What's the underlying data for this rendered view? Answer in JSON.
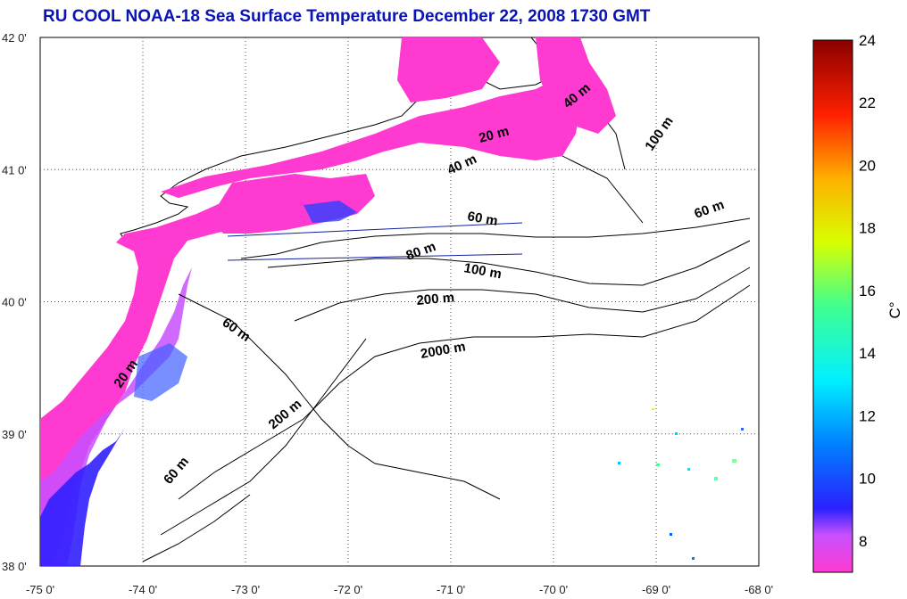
{
  "title": "RU COOL  NOAA-18 Sea Surface Temperature December 22, 2008 1730 GMT",
  "map": {
    "lon_range": [
      -75,
      -68
    ],
    "lat_range": [
      38,
      42
    ],
    "lon_ticks": [
      "-75 0'",
      "-74 0'",
      "-73 0'",
      "-72 0'",
      "-71 0'",
      "-70 0'",
      "-69 0'",
      "-68 0'"
    ],
    "lat_ticks": [
      "42 0'",
      "41 0'",
      "40 0'",
      "39 0'",
      "38 0'"
    ],
    "grid": "dotted",
    "contour_labels": [
      "20 m",
      "40 m",
      "40 m",
      "100 m",
      "60 m",
      "60 m",
      "80 m",
      "100 m",
      "200 m",
      "2000 m",
      "60 m",
      "20 m",
      "200 m",
      "60 m"
    ]
  },
  "colorbar": {
    "unit_label": "C°",
    "ticks": [
      "24",
      "22",
      "20",
      "18",
      "16",
      "14",
      "12",
      "10",
      "8"
    ],
    "range": [
      7,
      24
    ],
    "colors": [
      "#ff3ad0",
      "#d040ff",
      "#3020ff",
      "#0090ff",
      "#00ffff",
      "#40ff80",
      "#d0ff00",
      "#ffb000",
      "#ff2000",
      "#8a0000"
    ]
  }
}
